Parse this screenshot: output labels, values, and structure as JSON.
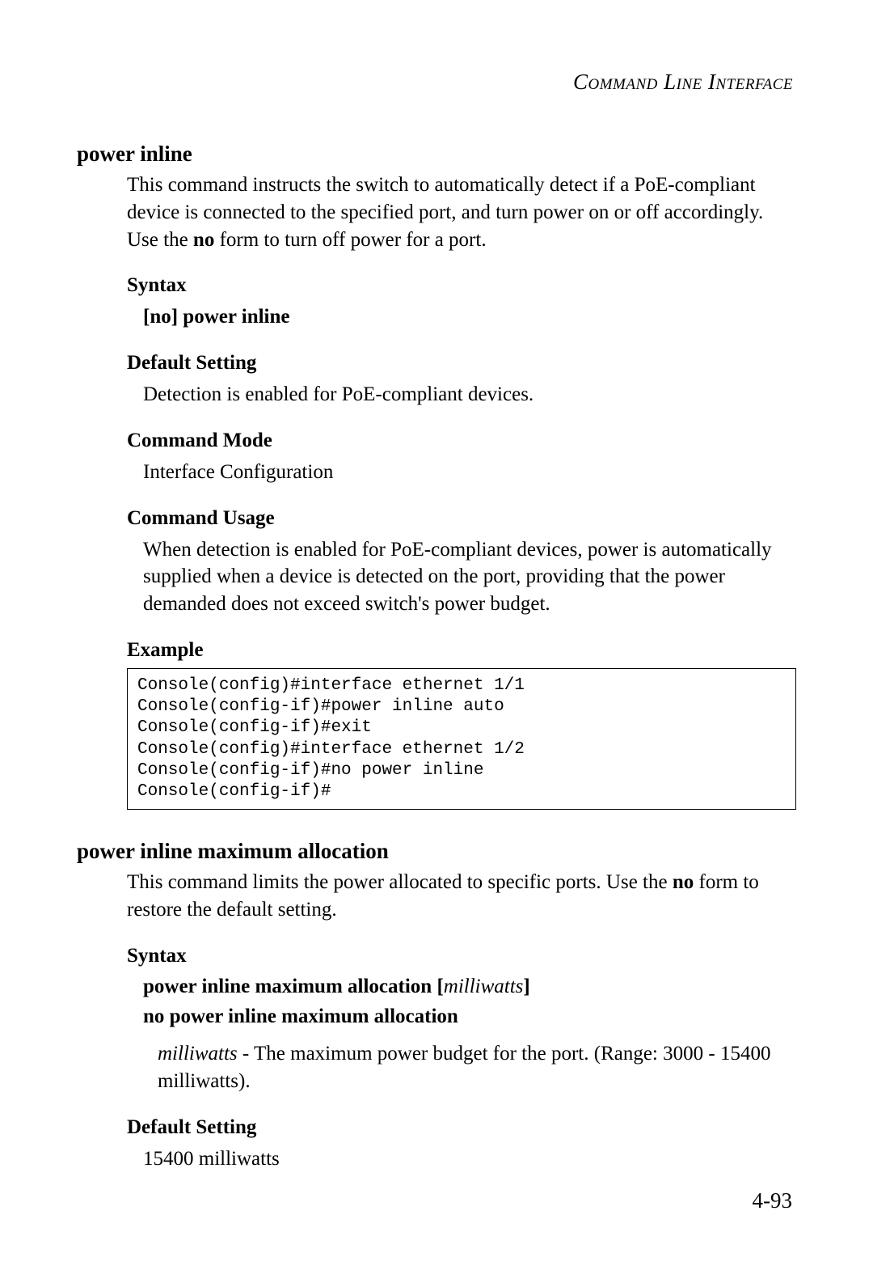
{
  "header": {
    "running": "Command Line Interface"
  },
  "section1": {
    "title": "power inline",
    "intro_pre": "This command instructs the switch to automatically detect if a PoE-compliant device is connected to the specified port, and turn power on or off accordingly. Use the ",
    "intro_bold": "no",
    "intro_post": " form to turn off power for a port.",
    "syntax_heading": "Syntax",
    "syntax_line": "[no] power inline",
    "default_heading": "Default Setting",
    "default_text": "Detection is enabled for PoE-compliant devices.",
    "mode_heading": "Command Mode",
    "mode_text": "Interface Configuration",
    "usage_heading": "Command Usage",
    "usage_text": "When detection is enabled for PoE-compliant devices, power is automatically supplied when a device is detected on the port, providing that the power demanded does not exceed switch's power budget.",
    "example_heading": "Example",
    "example_code": "Console(config)#interface ethernet 1/1\nConsole(config-if)#power inline auto\nConsole(config-if)#exit\nConsole(config)#interface ethernet 1/2\nConsole(config-if)#no power inline\nConsole(config-if)#"
  },
  "section2": {
    "title": "power inline maximum allocation",
    "intro_pre": "This command limits the power allocated to specific ports. Use the ",
    "intro_bold": "no",
    "intro_post": " form to restore the default setting.",
    "syntax_heading": "Syntax",
    "syntax_line1_bold": "power inline maximum allocation ",
    "syntax_line1_param": "milliwatts",
    "syntax_line2": "no power inline maximum allocation",
    "param_name": "milliwatts",
    "param_desc": " - The maximum power budget for the port. (Range: 3000 - 15400 milliwatts).",
    "default_heading": "Default Setting",
    "default_text": "15400 milliwatts"
  },
  "footer": {
    "page": "4-93"
  },
  "colors": {
    "text": "#000000",
    "background": "#ffffff",
    "border": "#000000"
  },
  "typography": {
    "body_family": "Garamond / Times-like serif",
    "body_size_pt": 12,
    "heading_size_pt": 13,
    "mono_family": "Courier New",
    "mono_size_pt": 10
  }
}
